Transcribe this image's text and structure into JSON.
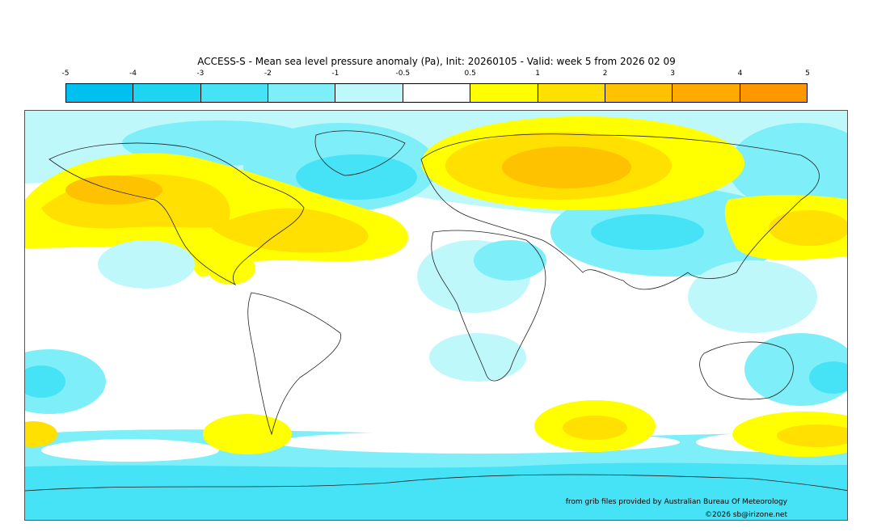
{
  "title": "ACCESS-S - Mean sea level pressure anomaly (Pa), Init: 20260105 - Valid: week 5 from 2026 02 09",
  "colorbar": {
    "ticks": [
      "-5",
      "-4",
      "-3",
      "-2",
      "-1",
      "-0.5",
      "0.5",
      "1",
      "2",
      "3",
      "4",
      "5"
    ],
    "colors": [
      "#00c0f0",
      "#1dd5f0",
      "#45e3f5",
      "#7eeff8",
      "#bef8fb",
      "#ffffff",
      "#ffff00",
      "#ffe000",
      "#ffc200",
      "#ffaa00",
      "#ff9800"
    ]
  },
  "credit": "from grib files provided by Australian Bureau Of Meteorology",
  "copyright": "©2026 sb@irizone.net"
}
